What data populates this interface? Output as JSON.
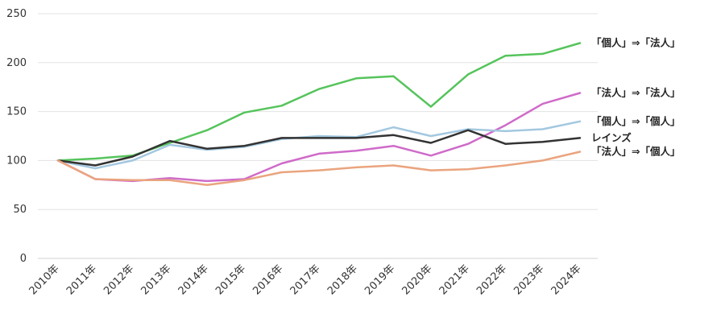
{
  "chart_data": {
    "type": "line",
    "title": "",
    "xlabel": "",
    "ylabel": "",
    "ylim": [
      0,
      250
    ],
    "yticks": [
      0,
      50,
      100,
      150,
      200,
      250
    ],
    "grid": true,
    "categories": [
      "2010年",
      "2011年",
      "2012年",
      "2013年",
      "2014年",
      "2015年",
      "2016年",
      "2017年",
      "2018年",
      "2019年",
      "2020年",
      "2021年",
      "2022年",
      "2023年",
      "2024年"
    ],
    "series": [
      {
        "name": "「個人」⇒「法人」",
        "color": "#55c45b",
        "values": [
          100,
          102,
          105,
          118,
          131,
          149,
          156,
          173,
          184,
          186,
          155,
          188,
          207,
          209,
          220
        ]
      },
      {
        "name": "「法人」⇒「法人」",
        "color": "#cf6bc9",
        "values": [
          100,
          81,
          79,
          82,
          79,
          81,
          97,
          107,
          110,
          115,
          105,
          117,
          136,
          158,
          169
        ]
      },
      {
        "name": "「個人」⇒「個人」",
        "color": "#a3c8e0",
        "values": [
          100,
          92,
          100,
          116,
          111,
          114,
          122,
          125,
          124,
          134,
          125,
          132,
          130,
          132,
          140
        ]
      },
      {
        "name": "レインズ",
        "color": "#333333",
        "values": [
          100,
          95,
          104,
          120,
          112,
          115,
          123,
          123,
          123,
          126,
          118,
          131,
          117,
          119,
          123
        ]
      },
      {
        "name": "「法人」⇒「個人」",
        "color": "#eaa47e",
        "values": [
          100,
          81,
          80,
          80,
          75,
          80,
          88,
          90,
          93,
          95,
          90,
          91,
          95,
          100,
          109
        ]
      }
    ]
  }
}
